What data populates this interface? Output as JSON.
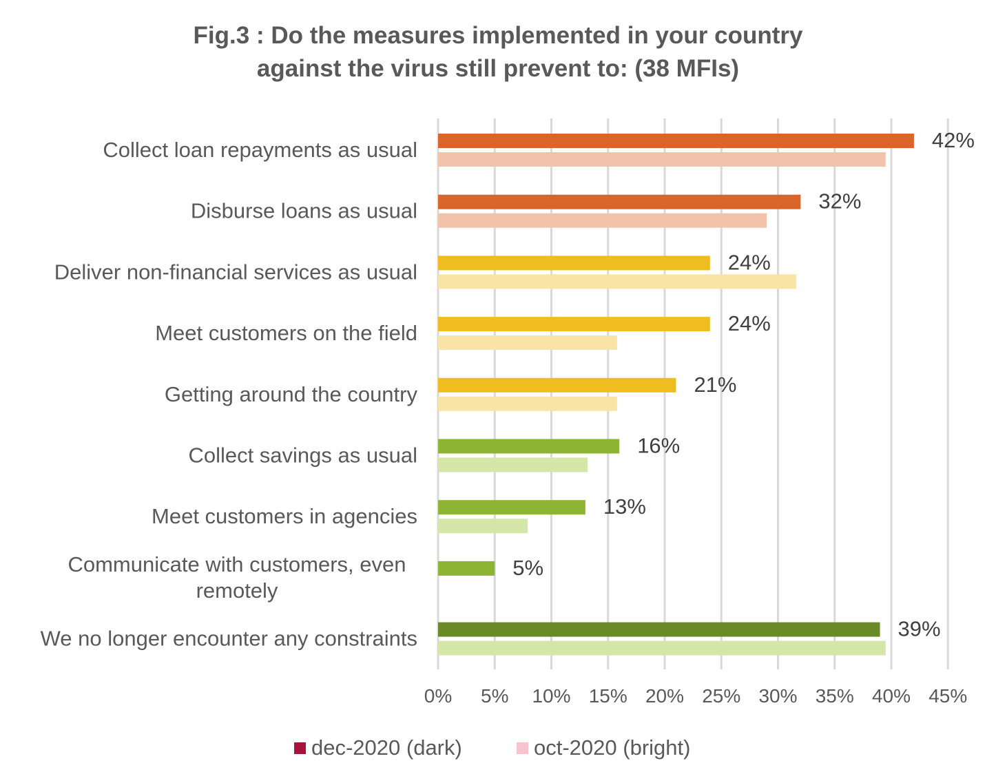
{
  "chart_data": {
    "type": "bar",
    "orientation": "horizontal",
    "title": "Fig.3 : Do the measures implemented in your country against the virus still prevent to: (38 MFIs)",
    "title_lines": [
      "Fig.3 : Do the measures implemented in your country",
      "against the virus still prevent to: (38 MFIs)"
    ],
    "categories": [
      "Collect loan repayments as usual",
      "Disburse loans as usual",
      "Deliver non-financial services as usual",
      "Meet customers on the field",
      "Getting around the country",
      "Collect savings as usual",
      "Meet customers in agencies",
      "Communicate with customers, even remotely",
      "We no longer encounter any constraints"
    ],
    "category_lines": [
      [
        "Collect loan repayments as usual"
      ],
      [
        "Disburse loans as usual"
      ],
      [
        "Deliver non-financial services as usual"
      ],
      [
        "Meet customers on the field"
      ],
      [
        "Getting around the country"
      ],
      [
        "Collect savings as usual"
      ],
      [
        "Meet customers in agencies"
      ],
      [
        "Communicate with customers, even",
        "remotely"
      ],
      [
        "We no longer encounter any constraints"
      ]
    ],
    "series": [
      {
        "name": "dec-2020 (dark)",
        "values": [
          42,
          32,
          24,
          24,
          21,
          16,
          13,
          5,
          39
        ],
        "data_labels": [
          "42%",
          "32%",
          "24%",
          "24%",
          "21%",
          "16%",
          "13%",
          "5%",
          "39%"
        ],
        "colors": [
          "#DB6428",
          "#DB6428",
          "#F0BD21",
          "#F0BD21",
          "#F0BD21",
          "#8DB432",
          "#8DB432",
          "#8DB432",
          "#6A8A28"
        ]
      },
      {
        "name": "oct-2020 (bright)",
        "values": [
          39.5,
          29,
          31.6,
          15.8,
          15.8,
          13.2,
          7.9,
          0,
          39.5
        ],
        "colors": [
          "#F2C2AB",
          "#F2C2AB",
          "#F9E4A6",
          "#F9E4A6",
          "#F9E4A6",
          "#D5E6A9",
          "#D5E6A9",
          "#D5E6A9",
          "#D5E6A9"
        ]
      }
    ],
    "xlim": [
      0,
      45
    ],
    "x_ticks": [
      "0%",
      "5%",
      "10%",
      "15%",
      "20%",
      "25%",
      "30%",
      "35%",
      "40%",
      "45%"
    ],
    "grid": true,
    "legend": {
      "position": "bottom",
      "entries": [
        {
          "label": "dec-2020 (dark)",
          "color": "#A6133C"
        },
        {
          "label": "oct-2020 (bright)",
          "color": "#F8C3D0"
        }
      ]
    },
    "text_color": "#595959",
    "grid_color": "#D9D9D9"
  }
}
